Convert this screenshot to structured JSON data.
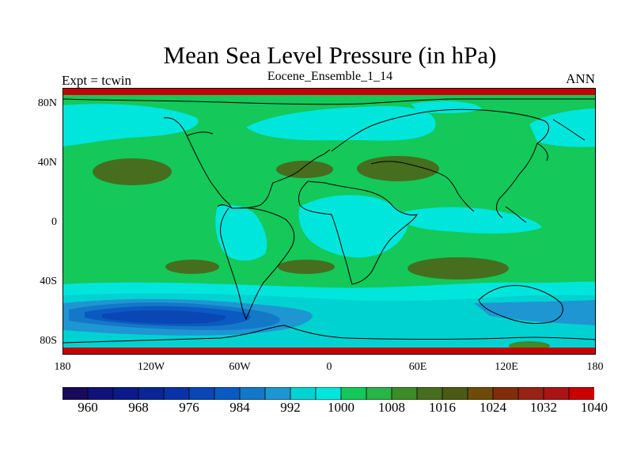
{
  "title": "Mean Sea Level Pressure (in hPa)",
  "subtitle": "Eocene_Ensemble_1_14",
  "left_label": "Expt = tcwin",
  "right_label": "ANN",
  "lat_ticks": [
    "80N",
    "40N",
    "0",
    "40S",
    "80S"
  ],
  "lon_ticks": [
    "180",
    "120W",
    "60W",
    "0",
    "60E",
    "120E",
    "180"
  ],
  "colorbar": {
    "colors": [
      "#1a0a5c",
      "#10127a",
      "#0a1a8a",
      "#0a2596",
      "#0a32a8",
      "#0a46b4",
      "#0a5ac2",
      "#1478c8",
      "#1e96d2",
      "#00d2d2",
      "#00e6dc",
      "#14c85a",
      "#28b446",
      "#3c8c28",
      "#466e1e",
      "#4b5a14",
      "#6e4b0a",
      "#822d0a",
      "#962314",
      "#aa1414",
      "#c80000"
    ],
    "labels": [
      "960",
      "968",
      "976",
      "984",
      "992",
      "1000",
      "1008",
      "1016",
      "1024",
      "1032",
      "1040"
    ]
  },
  "map_colors": {
    "background": "#14c85a",
    "cyan_light": "#00e6dc",
    "cyan": "#00d2d2",
    "blue_light": "#1e96d2",
    "blue": "#1478c8",
    "blue_mid": "#0a5ac2",
    "blue_dark": "#0a46b4",
    "olive": "#466e1e",
    "olive_light": "#3c8c28",
    "red_band": "#c80000",
    "coast": "#000000"
  }
}
